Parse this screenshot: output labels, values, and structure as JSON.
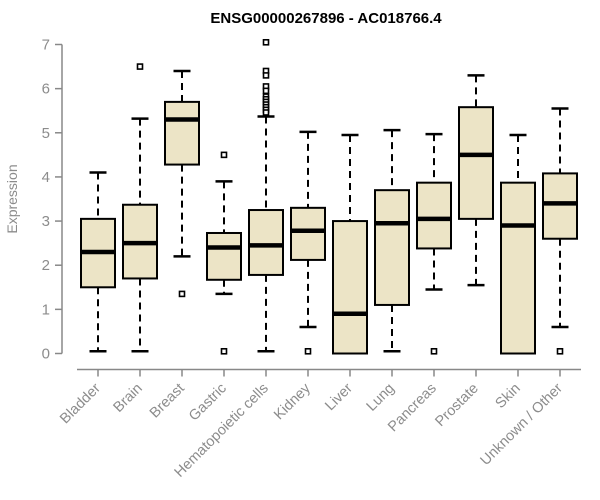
{
  "title": "ENSG00000267896 - AC018766.4",
  "chart_data": {
    "type": "boxplot",
    "title": "ENSG00000267896 - AC018766.4",
    "xlabel": "",
    "ylabel": "Expression",
    "ylim": [
      0,
      7
    ],
    "yticks": [
      0,
      1,
      2,
      3,
      4,
      5,
      6,
      7
    ],
    "grid": false,
    "legend": "none",
    "categories": [
      "Bladder",
      "Brain",
      "Breast",
      "Gastric",
      "Hematopoietic cells",
      "Kidney",
      "Liver",
      "Lung",
      "Pancreas",
      "Prostate",
      "Skin",
      "Unknown / Other"
    ],
    "series": [
      {
        "name": "Bladder",
        "whisker_low": 0.05,
        "q1": 1.5,
        "median": 2.3,
        "q3": 3.05,
        "whisker_high": 4.1,
        "outliers": []
      },
      {
        "name": "Brain",
        "whisker_low": 0.05,
        "q1": 1.7,
        "median": 2.5,
        "q3": 3.37,
        "whisker_high": 5.32,
        "outliers": [
          6.5
        ]
      },
      {
        "name": "Breast",
        "whisker_low": 2.2,
        "q1": 4.28,
        "median": 5.3,
        "q3": 5.7,
        "whisker_high": 6.4,
        "outliers": [
          1.35
        ]
      },
      {
        "name": "Gastric",
        "whisker_low": 1.35,
        "q1": 1.67,
        "median": 2.4,
        "q3": 2.73,
        "whisker_high": 3.9,
        "outliers": [
          4.5,
          0.05
        ]
      },
      {
        "name": "Hematopoietic cells",
        "whisker_low": 0.05,
        "q1": 1.78,
        "median": 2.45,
        "q3": 3.25,
        "whisker_high": 5.37,
        "outliers": [
          7.05,
          6.4,
          6.3,
          6.05,
          5.95,
          5.82,
          5.76,
          5.7,
          5.64,
          5.58,
          5.52,
          5.46
        ]
      },
      {
        "name": "Kidney",
        "whisker_low": 0.6,
        "q1": 2.12,
        "median": 2.78,
        "q3": 3.3,
        "whisker_high": 5.02,
        "outliers": [
          0.05
        ]
      },
      {
        "name": "Liver",
        "whisker_low": 0.0,
        "q1": 0.0,
        "median": 0.9,
        "q3": 3.0,
        "whisker_high": 4.95,
        "outliers": []
      },
      {
        "name": "Lung",
        "whisker_low": 0.05,
        "q1": 1.1,
        "median": 2.95,
        "q3": 3.7,
        "whisker_high": 5.06,
        "outliers": []
      },
      {
        "name": "Pancreas",
        "whisker_low": 1.45,
        "q1": 2.38,
        "median": 3.05,
        "q3": 3.87,
        "whisker_high": 4.97,
        "outliers": [
          0.05
        ]
      },
      {
        "name": "Prostate",
        "whisker_low": 1.55,
        "q1": 3.05,
        "median": 4.5,
        "q3": 5.58,
        "whisker_high": 6.3,
        "outliers": []
      },
      {
        "name": "Skin",
        "whisker_low": 0.0,
        "q1": 0.0,
        "median": 2.9,
        "q3": 3.87,
        "whisker_high": 4.95,
        "outliers": []
      },
      {
        "name": "Unknown / Other",
        "whisker_low": 0.6,
        "q1": 2.6,
        "median": 3.4,
        "q3": 4.08,
        "whisker_high": 5.55,
        "outliers": [
          0.05
        ]
      }
    ],
    "colors": {
      "box_fill": "#ece4c6",
      "box_border": "#000000",
      "median": "#000000",
      "whisker": "#000000",
      "axis": "#888888",
      "tick_label": "#8c8c8c",
      "title": "#000000",
      "background": "#ffffff"
    }
  }
}
